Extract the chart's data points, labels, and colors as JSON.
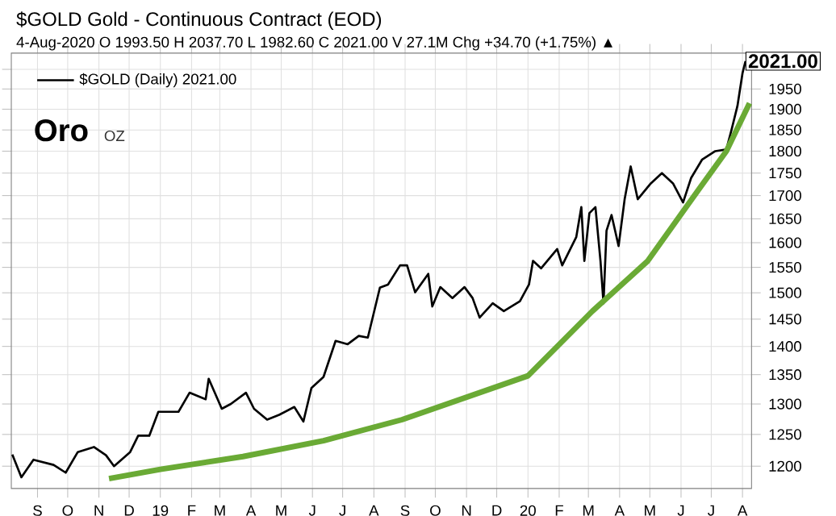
{
  "chart_data": {
    "type": "line",
    "title": "$GOLD Gold - Continuous Contract (EOD)",
    "subtitle": "4-Aug-2020 O 1993.50 H 2037.70 L 1982.60 C 2021.00 V 27.1M Chg +34.70 (+1.75%) ▲",
    "series": [
      {
        "name": "$GOLD (Daily) 2021.00",
        "color": "#000000",
        "x": [
          "2018-08-07",
          "2018-08-16",
          "2018-08-28",
          "2018-09-17",
          "2018-09-29",
          "2018-10-11",
          "2018-10-27",
          "2018-11-08",
          "2018-11-16",
          "2018-12-02",
          "2018-12-10",
          "2018-12-21",
          "2018-12-30",
          "2019-01-19",
          "2019-01-30",
          "2019-02-15",
          "2019-02-18",
          "2019-03-03",
          "2019-03-12",
          "2019-03-27",
          "2019-04-04",
          "2019-04-17",
          "2019-04-29",
          "2019-05-14",
          "2019-05-23",
          "2019-05-31",
          "2019-06-12",
          "2019-06-24",
          "2019-07-06",
          "2019-07-17",
          "2019-07-26",
          "2019-08-07",
          "2019-08-15",
          "2019-08-27",
          "2019-09-03",
          "2019-09-11",
          "2019-09-24",
          "2019-09-28",
          "2019-10-06",
          "2019-10-18",
          "2019-10-30",
          "2019-11-07",
          "2019-11-14",
          "2019-11-27",
          "2019-12-08",
          "2019-12-24",
          "2020-01-02",
          "2020-01-06",
          "2020-01-14",
          "2020-01-30",
          "2020-02-04",
          "2020-02-18",
          "2020-02-23",
          "2020-02-26",
          "2020-03-02",
          "2020-03-08",
          "2020-03-13",
          "2020-03-16",
          "2020-03-19",
          "2020-03-24",
          "2020-03-31",
          "2020-04-06",
          "2020-04-12",
          "2020-04-19",
          "2020-05-02",
          "2020-05-13",
          "2020-05-24",
          "2020-06-03",
          "2020-06-11",
          "2020-06-22",
          "2020-07-05",
          "2020-07-16",
          "2020-07-21",
          "2020-07-27",
          "2020-08-01",
          "2020-08-04"
        ],
        "values": [
          1218,
          1183,
          1210,
          1202,
          1190,
          1222,
          1230,
          1217,
          1200,
          1222,
          1248,
          1248,
          1287,
          1287,
          1319,
          1308,
          1343,
          1292,
          1300,
          1319,
          1292,
          1274,
          1282,
          1295,
          1271,
          1327,
          1346,
          1410,
          1404,
          1419,
          1416,
          1510,
          1516,
          1554,
          1554,
          1501,
          1537,
          1474,
          1511,
          1490,
          1511,
          1490,
          1453,
          1480,
          1465,
          1484,
          1516,
          1563,
          1548,
          1587,
          1554,
          1612,
          1675,
          1563,
          1662,
          1675,
          1563,
          1480,
          1625,
          1658,
          1593,
          1692,
          1765,
          1692,
          1727,
          1750,
          1727,
          1685,
          1739,
          1781,
          1800,
          1804,
          1849,
          1908,
          1990,
          2021
        ]
      },
      {
        "type": "line",
        "color": "#6aaa35",
        "x": [
          "2018-11-11",
          "2019-01-01",
          "2019-03-24",
          "2019-06-12",
          "2019-08-29",
          "2020-01-01",
          "2020-03-05",
          "2020-04-29",
          "2020-06-19",
          "2020-07-16",
          "2020-08-08"
        ],
        "values": [
          1181,
          1195,
          1215,
          1240,
          1274,
          1348,
          1465,
          1563,
          1715,
          1800,
          1915
        ]
      }
    ],
    "xlim": [
      "2018-08-06",
      "2020-08-10"
    ],
    "xticks": [
      {
        "value": "2018-09-01",
        "label": "S"
      },
      {
        "value": "2018-10-01",
        "label": "O"
      },
      {
        "value": "2018-11-01",
        "label": "N"
      },
      {
        "value": "2018-12-01",
        "label": "D"
      },
      {
        "value": "2019-01-01",
        "label": "19"
      },
      {
        "value": "2019-02-01",
        "label": "F"
      },
      {
        "value": "2019-03-01",
        "label": "M"
      },
      {
        "value": "2019-04-01",
        "label": "A"
      },
      {
        "value": "2019-05-01",
        "label": "M"
      },
      {
        "value": "2019-06-01",
        "label": "J"
      },
      {
        "value": "2019-07-01",
        "label": "J"
      },
      {
        "value": "2019-08-01",
        "label": "A"
      },
      {
        "value": "2019-09-01",
        "label": "S"
      },
      {
        "value": "2019-10-01",
        "label": "O"
      },
      {
        "value": "2019-11-01",
        "label": "N"
      },
      {
        "value": "2019-12-01",
        "label": "D"
      },
      {
        "value": "2020-01-01",
        "label": "20"
      },
      {
        "value": "2020-02-01",
        "label": "F"
      },
      {
        "value": "2020-03-01",
        "label": "M"
      },
      {
        "value": "2020-04-01",
        "label": "A"
      },
      {
        "value": "2020-05-01",
        "label": "M"
      },
      {
        "value": "2020-06-01",
        "label": "J"
      },
      {
        "value": "2020-07-01",
        "label": "J"
      },
      {
        "value": "2020-08-01",
        "label": "A"
      }
    ],
    "ylim": [
      1166,
      2042
    ],
    "yticks": [
      1200,
      1250,
      1300,
      1350,
      1400,
      1450,
      1500,
      1550,
      1600,
      1650,
      1700,
      1750,
      1800,
      1850,
      1900,
      1950,
      {
        "value": 2000,
        "label": null
      }
    ],
    "log": "y",
    "grid": true,
    "legend": "top left",
    "annotations": [
      "Oro",
      "OZ",
      {
        "text": "2021.00",
        "x": "2020-08-04",
        "y": 2021
      }
    ]
  }
}
